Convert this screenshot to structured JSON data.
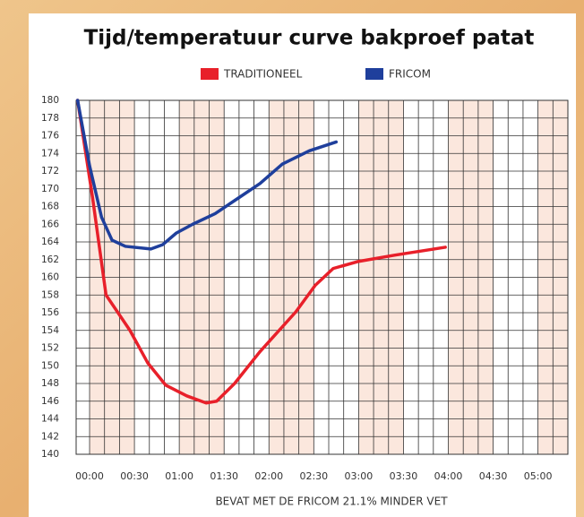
{
  "chart_data": {
    "type": "line",
    "title": "Tijd/temperatuur curve bakproef patat",
    "xlabel": "BEVAT MET DE FRICOM 21.1% MINDER VET",
    "x_red": [
      -8,
      2,
      11,
      27,
      39,
      51,
      65,
      78,
      85,
      97,
      114,
      138,
      151,
      163,
      180,
      204,
      238
    ],
    "x_blue": [
      -8,
      0,
      8,
      15,
      24,
      41,
      49,
      58,
      69,
      84,
      99,
      114,
      129,
      147,
      165
    ],
    "series": [
      {
        "name": "TRADITIONEEL",
        "color": "#e8202a",
        "values": [
          180,
          169,
          158,
          154,
          150.3,
          147.8,
          146.6,
          145.8,
          146,
          148,
          151.6,
          156.1,
          159.1,
          161,
          161.8,
          162.5,
          163.4
        ]
      },
      {
        "name": "FRICOM",
        "color": "#1f3f9c",
        "values": [
          180,
          172.6,
          166.8,
          164.2,
          163.5,
          163.2,
          163.7,
          165,
          166,
          167.2,
          168.9,
          170.6,
          172.8,
          174.3,
          175.3
        ]
      }
    ],
    "xlim": [
      -9,
      320
    ],
    "ylim": [
      140,
      180
    ],
    "xticks": [
      {
        "value": 0,
        "label": "00:00"
      },
      {
        "value": 30,
        "label": "00:30"
      },
      {
        "value": 60,
        "label": "01:00"
      },
      {
        "value": 90,
        "label": "01:30"
      },
      {
        "value": 120,
        "label": "02:00"
      },
      {
        "value": 150,
        "label": "02:30"
      },
      {
        "value": 180,
        "label": "03:00"
      },
      {
        "value": 210,
        "label": "03:30"
      },
      {
        "value": 240,
        "label": "04:00"
      },
      {
        "value": 270,
        "label": "04:30"
      },
      {
        "value": 300,
        "label": "05:00"
      }
    ],
    "yticks": [
      140,
      142,
      144,
      146,
      148,
      150,
      152,
      154,
      156,
      158,
      160,
      162,
      164,
      166,
      168,
      170,
      172,
      174,
      176,
      178,
      180
    ],
    "grid": true
  }
}
